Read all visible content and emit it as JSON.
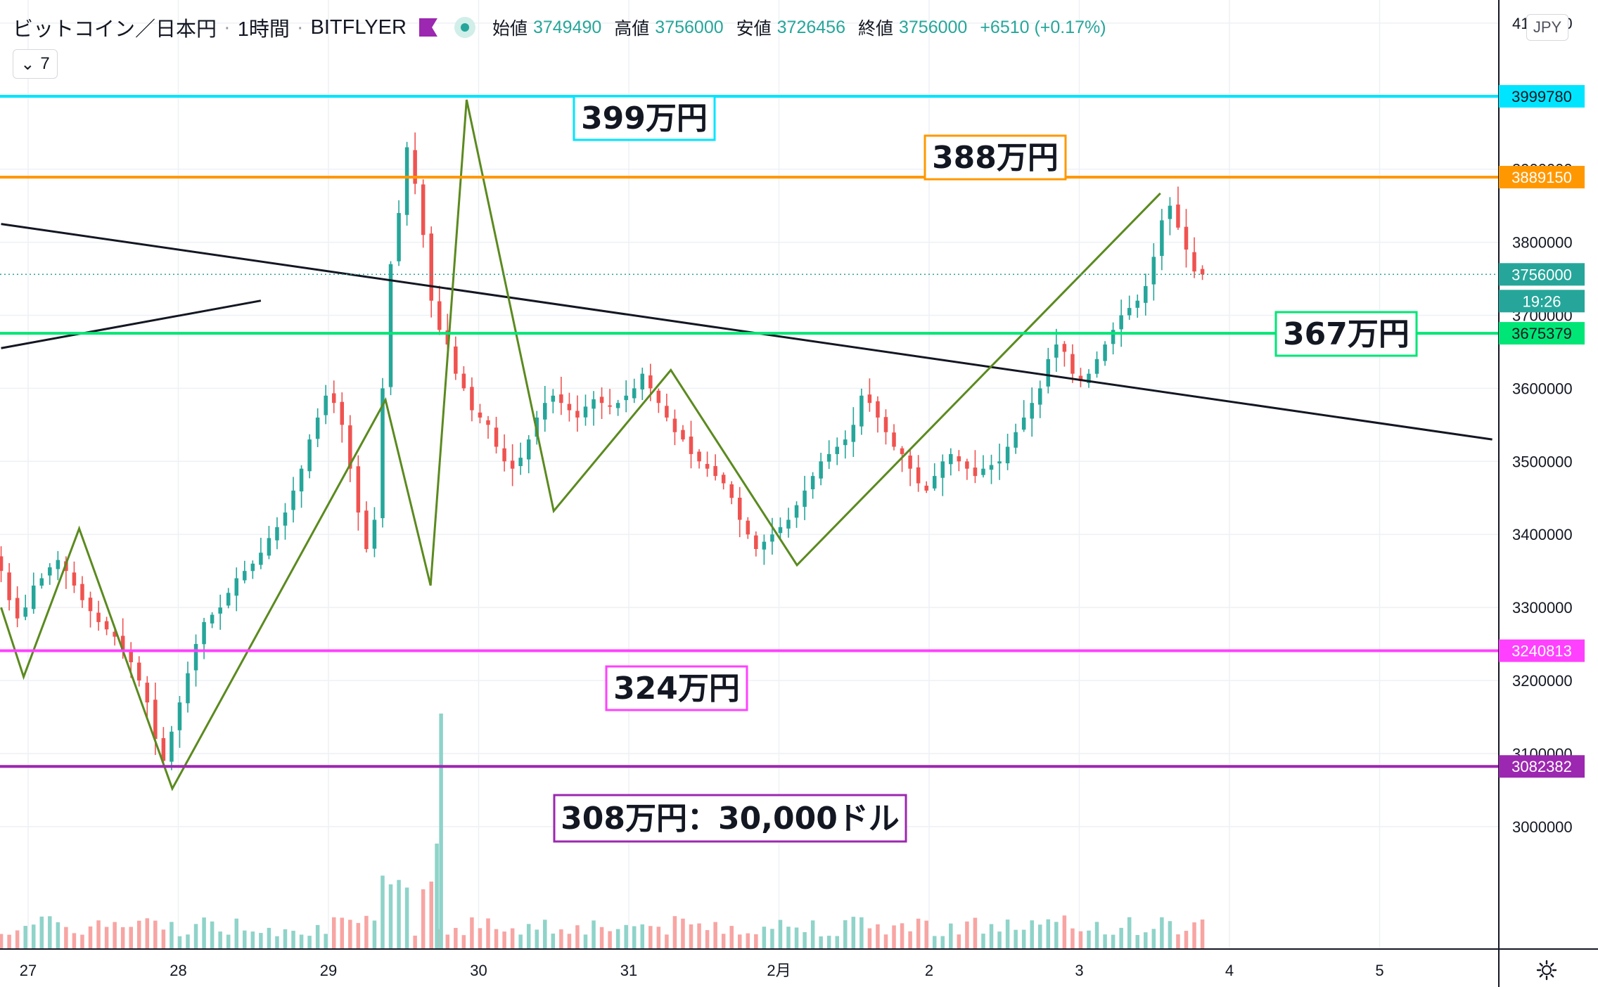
{
  "header": {
    "symbol": "ビットコイン／日本円",
    "interval": "1時間",
    "exchange": "BITFLYER",
    "open_label": "始値",
    "open": "3749490",
    "high_label": "高値",
    "high": "3756000",
    "low_label": "安値",
    "low": "3726456",
    "close_label": "終値",
    "close": "3756000",
    "change": "+6510 (+0.17%)",
    "collapse_count": "7",
    "currency": "JPY"
  },
  "chart_data": {
    "type": "candlestick",
    "title": "",
    "ylim": [
      2960000,
      4100000
    ],
    "y_ticks": [
      3000000,
      3100000,
      3200000,
      3300000,
      3400000,
      3500000,
      3600000,
      3700000,
      3800000,
      3900000,
      4000000,
      4100000
    ],
    "x_ticks": [
      {
        "label": "27",
        "day": 0
      },
      {
        "label": "28",
        "day": 1
      },
      {
        "label": "29",
        "day": 2
      },
      {
        "label": "30",
        "day": 3
      },
      {
        "label": "31",
        "day": 4
      },
      {
        "label": "2月",
        "day": 5
      },
      {
        "label": "2",
        "day": 6
      },
      {
        "label": "3",
        "day": 7
      },
      {
        "label": "4",
        "day": 8
      },
      {
        "label": "5",
        "day": 9
      }
    ],
    "candles_hourly_close": [
      3350000,
      3310000,
      3285000,
      3300000,
      3330000,
      3340000,
      3355000,
      3365000,
      3350000,
      3330000,
      3310000,
      3295000,
      3280000,
      3270000,
      3260000,
      3240000,
      3225000,
      3200000,
      3170000,
      3120000,
      3090000,
      3130000,
      3170000,
      3210000,
      3250000,
      3280000,
      3290000,
      3300000,
      3320000,
      3340000,
      3350000,
      3360000,
      3375000,
      3395000,
      3410000,
      3430000,
      3460000,
      3490000,
      3530000,
      3560000,
      3590000,
      3580000,
      3550000,
      3490000,
      3430000,
      3380000,
      3420000,
      3600000,
      3770000,
      3840000,
      3930000,
      3880000,
      3810000,
      3720000,
      3680000,
      3660000,
      3620000,
      3600000,
      3570000,
      3560000,
      3550000,
      3520000,
      3500000,
      3490000,
      3505000,
      3530000,
      3560000,
      3580000,
      3590000,
      3580000,
      3570000,
      3560000,
      3575000,
      3585000,
      3580000,
      3575000,
      3580000,
      3590000,
      3600000,
      3620000,
      3600000,
      3580000,
      3560000,
      3540000,
      3530000,
      3510000,
      3500000,
      3490000,
      3480000,
      3470000,
      3450000,
      3420000,
      3400000,
      3380000,
      3390000,
      3400000,
      3410000,
      3420000,
      3440000,
      3460000,
      3480000,
      3500000,
      3510000,
      3520000,
      3530000,
      3550000,
      3590000,
      3580000,
      3560000,
      3540000,
      3520000,
      3510000,
      3490000,
      3470000,
      3460000,
      3480000,
      3500000,
      3510000,
      3500000,
      3490000,
      3480000,
      3490000,
      3495000,
      3500000,
      3520000,
      3540000,
      3560000,
      3580000,
      3600000,
      3640000,
      3660000,
      3650000,
      3620000,
      3610000,
      3620000,
      3640000,
      3660000,
      3680000,
      3700000,
      3710000,
      3720000,
      3740000,
      3780000,
      3830000,
      3850000,
      3820000,
      3790000,
      3760000,
      3756000
    ],
    "volume_spike_day_position": 2.75,
    "volume_spike": 3.4,
    "horizontal_levels": [
      {
        "value": 3999780,
        "label": "3999780",
        "color": "#00e5ff",
        "note": "399万円"
      },
      {
        "value": 3889150,
        "label": "3889150",
        "color": "#ff9800",
        "note": "388万円"
      },
      {
        "value": 3675379,
        "label": "3675379",
        "color": "#00e676",
        "note": "367万円"
      },
      {
        "value": 3240813,
        "label": "3240813",
        "color": "#ff40ff",
        "note": "324万円"
      },
      {
        "value": 3082382,
        "label": "3082382",
        "color": "#9c27b0",
        "note": "308万円：30,000ドル"
      }
    ],
    "last_price": {
      "value": 3756000,
      "label": "3756000",
      "countdown": "19:26"
    },
    "trendline_upper": [
      {
        "day": -0.18,
        "value": 3825000
      },
      {
        "day": 9.75,
        "value": 3530000
      }
    ],
    "trendline_lower": [
      {
        "day": -0.18,
        "value": 3655000
      },
      {
        "day": 1.55,
        "value": 3720000
      }
    ],
    "zigzag": [
      {
        "day": -0.18,
        "value": 3300000
      },
      {
        "day": -0.03,
        "value": 3205000
      },
      {
        "day": 0.34,
        "value": 3408000
      },
      {
        "day": 0.96,
        "value": 3052000
      },
      {
        "day": 2.38,
        "value": 3584000
      },
      {
        "day": 2.68,
        "value": 3330000
      },
      {
        "day": 2.92,
        "value": 3995000
      },
      {
        "day": 3.5,
        "value": 3432000
      },
      {
        "day": 4.28,
        "value": 3625000
      },
      {
        "day": 5.12,
        "value": 3358000
      },
      {
        "day": 7.54,
        "value": 3867000
      }
    ]
  }
}
